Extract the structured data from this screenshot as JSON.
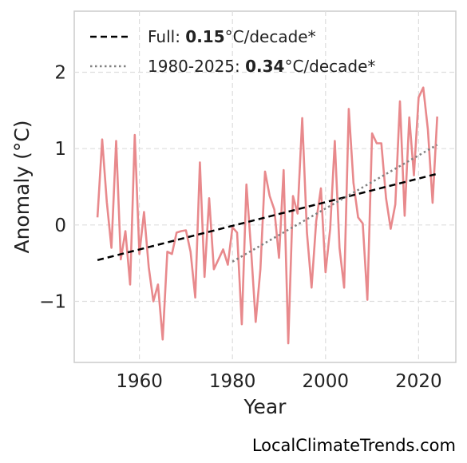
{
  "chart_data": {
    "type": "line",
    "xlabel": "Year",
    "ylabel": "Anomaly (°C)",
    "xlim": [
      1946,
      2028
    ],
    "ylim": [
      -1.8,
      2.8
    ],
    "xticks": [
      1960,
      1980,
      2000,
      2020
    ],
    "yticks": [
      2,
      1,
      0,
      -1
    ],
    "ytick_labels": [
      "2",
      "1",
      "0",
      "−1"
    ],
    "grid": true,
    "legend_position": "top-left",
    "legend": [
      {
        "prefix": "Full: ",
        "value": "0.15",
        "suffix": "°C/decade*",
        "style": "dashed",
        "color": "#000000"
      },
      {
        "prefix": "1980-2025: ",
        "value": "0.34",
        "suffix": "°C/decade*",
        "style": "dotted",
        "color": "#808080"
      }
    ],
    "series": [
      {
        "color": "#e8898c",
        "x": [
          1951,
          1952,
          1953,
          1954,
          1955,
          1956,
          1957,
          1958,
          1959,
          1960,
          1961,
          1962,
          1963,
          1964,
          1965,
          1966,
          1967,
          1968,
          1969,
          1970,
          1971,
          1972,
          1973,
          1974,
          1975,
          1976,
          1977,
          1978,
          1979,
          1980,
          1981,
          1982,
          1983,
          1984,
          1985,
          1986,
          1987,
          1988,
          1989,
          1990,
          1991,
          1992,
          1993,
          1994,
          1995,
          1996,
          1997,
          1998,
          1999,
          2000,
          2001,
          2002,
          2003,
          2004,
          2005,
          2006,
          2007,
          2008,
          2009,
          2010,
          2011,
          2012,
          2013,
          2014,
          2015,
          2016,
          2017,
          2018,
          2019,
          2020,
          2021,
          2022,
          2023,
          2024
        ],
        "y": [
          0.1,
          1.12,
          0.3,
          -0.3,
          1.1,
          -0.45,
          -0.08,
          -0.78,
          1.18,
          -0.38,
          0.17,
          -0.55,
          -1.0,
          -0.78,
          -1.5,
          -0.35,
          -0.38,
          -0.1,
          -0.08,
          -0.07,
          -0.35,
          -0.95,
          0.82,
          -0.68,
          0.35,
          -0.58,
          -0.45,
          -0.32,
          -0.52,
          -0.03,
          -0.1,
          -1.3,
          0.53,
          -0.32,
          -1.27,
          -0.58,
          0.7,
          0.38,
          0.2,
          -0.43,
          0.72,
          -1.55,
          0.38,
          0.15,
          1.4,
          -0.1,
          -0.82,
          0.05,
          0.48,
          -0.62,
          -0.05,
          1.1,
          -0.3,
          -0.82,
          1.52,
          0.55,
          0.1,
          0.02,
          -0.98,
          1.2,
          1.07,
          1.07,
          0.35,
          -0.05,
          0.27,
          1.62,
          0.12,
          1.41,
          0.65,
          1.67,
          1.8,
          1.25,
          0.29,
          1.42
        ]
      }
    ],
    "trend_full": {
      "x": [
        1951,
        2024
      ],
      "y": [
        -0.46,
        0.67
      ]
    },
    "trend_recent": {
      "x": [
        1980,
        2024
      ],
      "y": [
        -0.48,
        1.05
      ]
    }
  },
  "watermark": "LocalClimateTrends.com"
}
